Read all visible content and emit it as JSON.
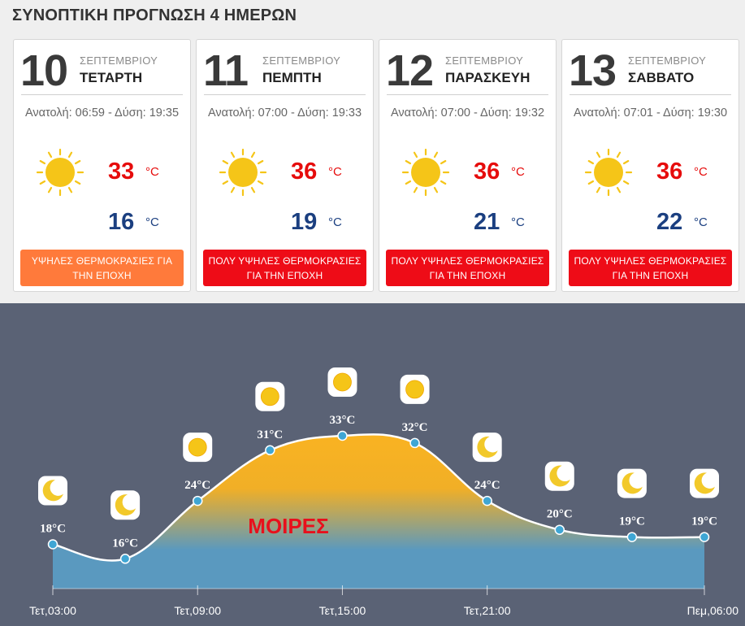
{
  "page": {
    "title": "ΣΥΝΟΠΤΙΚΗ ΠΡΟΓΝΩΣΗ 4 ΗΜΕΡΩΝ"
  },
  "cards": [
    {
      "day": "10",
      "month": "ΣΕΠΤΕΜΒΡΙΟΥ",
      "weekday": "ΤΕΤΑΡΤΗ",
      "sun_times": "Ανατολή: 06:59 - Δύση: 19:35",
      "icon": "sun-icon",
      "max": "33",
      "min": "16",
      "unit": "°C",
      "warning": "ΥΨΗΛΕΣ ΘΕΡΜΟΚΡΑΣΙΕΣ ΓΙΑ ΤΗΝ ΕΠΟΧΗ",
      "warning_color": "#ff7a3b"
    },
    {
      "day": "11",
      "month": "ΣΕΠΤΕΜΒΡΙΟΥ",
      "weekday": "ΠΕΜΠΤΗ",
      "sun_times": "Ανατολή: 07:00 - Δύση: 19:33",
      "icon": "sun-icon",
      "max": "36",
      "min": "19",
      "unit": "°C",
      "warning": "ΠΟΛΥ ΥΨΗΛΕΣ ΘΕΡΜΟΚΡΑΣΙΕΣ ΓΙΑ ΤΗΝ ΕΠΟΧΗ",
      "warning_color": "#ee0c17"
    },
    {
      "day": "12",
      "month": "ΣΕΠΤΕΜΒΡΙΟΥ",
      "weekday": "ΠΑΡΑΣΚΕΥΗ",
      "sun_times": "Ανατολή: 07:00 - Δύση: 19:32",
      "icon": "sun-icon",
      "max": "36",
      "min": "21",
      "unit": "°C",
      "warning": "ΠΟΛΥ ΥΨΗΛΕΣ ΘΕΡΜΟΚΡΑΣΙΕΣ ΓΙΑ ΤΗΝ ΕΠΟΧΗ",
      "warning_color": "#ee0c17"
    },
    {
      "day": "13",
      "month": "ΣΕΠΤΕΜΒΡΙΟΥ",
      "weekday": "ΣΑΒΒΑΤΟ",
      "sun_times": "Ανατολή: 07:01 - Δύση: 19:30",
      "icon": "sun-icon",
      "max": "36",
      "min": "22",
      "unit": "°C",
      "warning": "ΠΟΛΥ ΥΨΗΛΕΣ ΘΕΡΜΟΚΡΑΣΙΕΣ ΓΙΑ ΤΗΝ ΕΠΟΧΗ",
      "warning_color": "#ee0c17"
    }
  ],
  "chart_data": {
    "type": "area",
    "unit": "°C",
    "overlay_text": "ΜΟΙΡΕΣ",
    "ylim": [
      0,
      38
    ],
    "points": [
      {
        "temp": 18,
        "label": "18°C",
        "icon": "moon-icon"
      },
      {
        "temp": 16,
        "label": "16°C",
        "icon": "moon-icon"
      },
      {
        "temp": 24,
        "label": "24°C",
        "icon": "sun-icon"
      },
      {
        "temp": 31,
        "label": "31°C",
        "icon": "sun-icon"
      },
      {
        "temp": 33,
        "label": "33°C",
        "icon": "sun-icon"
      },
      {
        "temp": 32,
        "label": "32°C",
        "icon": "sun-icon"
      },
      {
        "temp": 24,
        "label": "24°C",
        "icon": "moon-icon"
      },
      {
        "temp": 20,
        "label": "20°C",
        "icon": "moon-icon"
      },
      {
        "temp": 19,
        "label": "19°C",
        "icon": "moon-icon"
      },
      {
        "temp": 19,
        "label": "19°C",
        "icon": "moon-icon"
      }
    ],
    "x_ticks": [
      {
        "index": 0,
        "label": "Τετ,03:00"
      },
      {
        "index": 2,
        "label": "Τετ,09:00"
      },
      {
        "index": 4,
        "label": "Τετ,15:00"
      },
      {
        "index": 6,
        "label": "Τετ,21:00"
      },
      {
        "index": 9,
        "label": "Πεμ,06:00"
      }
    ],
    "colors": {
      "background": "#5a6275",
      "fill_top": "#f9b322",
      "fill_bottom": "#5a99bf",
      "line": "#ffffff",
      "marker": "#3fa6d4",
      "sun": "#f5c518",
      "moon": "#f2c92a"
    }
  }
}
